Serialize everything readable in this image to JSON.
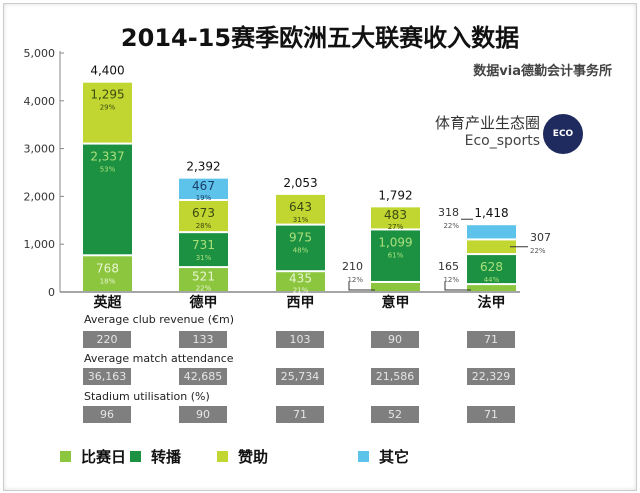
{
  "chart_data": {
    "type": "bar",
    "stacked": true,
    "title": "2014-15赛季欧洲五大联赛收入数据",
    "source": "数据via德勤会计事务所",
    "categories": [
      "英超",
      "德甲",
      "西甲",
      "意甲",
      "法甲"
    ],
    "ylim": [
      0,
      5000
    ],
    "yticks": [
      "0",
      "1,000",
      "2,000",
      "3,000",
      "4,000",
      "5,000"
    ],
    "ytick_values": [
      0,
      1000,
      2000,
      3000,
      4000,
      5000
    ],
    "totals": [
      "4,400",
      "2,392",
      "2,053",
      "1,792",
      "1,418"
    ],
    "series": [
      {
        "name": "比赛日",
        "color": "#8cc63f",
        "values": [
          768,
          521,
          435,
          210,
          165
        ],
        "labels": [
          "768",
          "521",
          "435",
          "210",
          "165"
        ],
        "pcts": [
          "18%",
          "22%",
          "21%",
          "12%",
          "12%"
        ]
      },
      {
        "name": "转播",
        "color": "#1d9142",
        "values": [
          2337,
          731,
          975,
          1099,
          628
        ],
        "labels": [
          "2,337",
          "731",
          "975",
          "1,099",
          "628"
        ],
        "pcts": [
          "53%",
          "31%",
          "48%",
          "61%",
          "44%"
        ]
      },
      {
        "name": "赞助",
        "color": "#c2d631",
        "values": [
          1295,
          673,
          643,
          483,
          307
        ],
        "labels": [
          "1,295",
          "673",
          "643",
          "483",
          "307"
        ],
        "pcts": [
          "29%",
          "28%",
          "31%",
          "27%",
          "22%"
        ]
      },
      {
        "name": "其它",
        "color": "#5ec3ea",
        "values": [
          0,
          467,
          0,
          0,
          318
        ],
        "labels": [
          "",
          "467",
          "",
          "",
          "318"
        ],
        "pcts": [
          "",
          "19%",
          "",
          "",
          "22%"
        ]
      }
    ],
    "legend_position": "bottom"
  },
  "brand": {
    "cn": "体育产业生态圈",
    "en": "Eco_sports",
    "logo_text": "ECO SPORTS"
  },
  "table": {
    "rows": [
      {
        "label": "Average club revenue (€m)",
        "values": [
          "220",
          "133",
          "103",
          "90",
          "71"
        ]
      },
      {
        "label": "Average match attendance",
        "values": [
          "36,163",
          "42,685",
          "25,734",
          "21,586",
          "22,329"
        ]
      },
      {
        "label": "Stadium utilisation (%)",
        "values": [
          "96",
          "90",
          "71",
          "52",
          "71"
        ]
      }
    ]
  }
}
